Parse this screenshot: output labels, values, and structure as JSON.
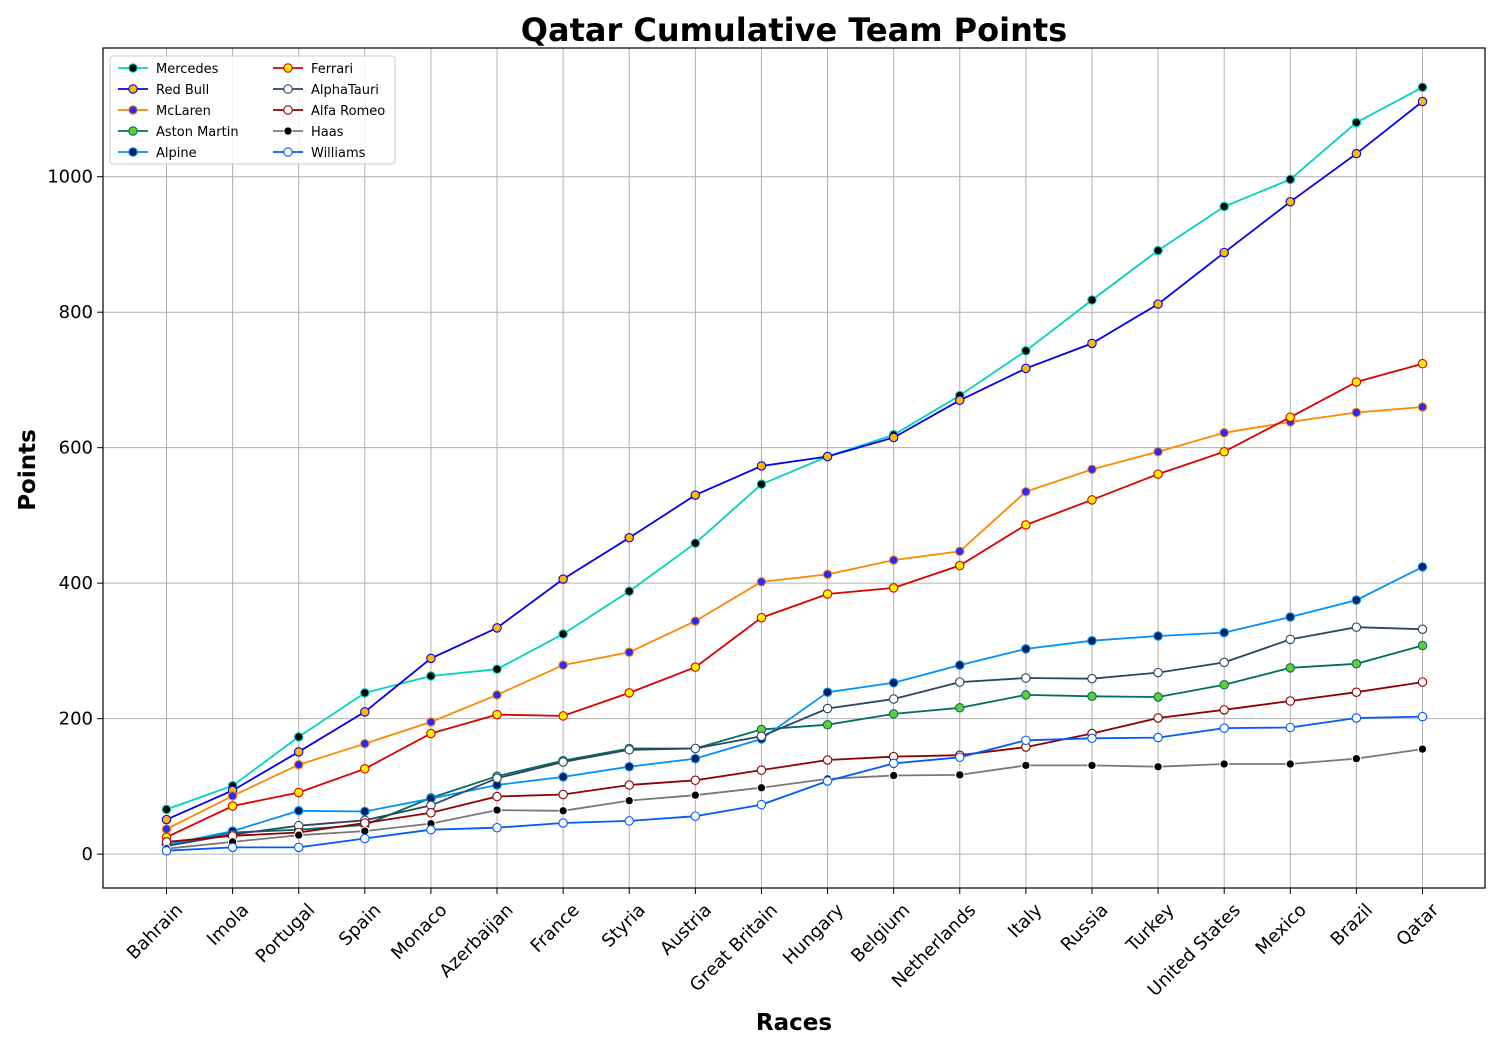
{
  "chart_data": {
    "type": "line",
    "title": "Qatar Cumulative Team Points",
    "xlabel": "Races",
    "ylabel": "Points",
    "categories": [
      "Bahrain",
      "Imola",
      "Portugal",
      "Spain",
      "Monaco",
      "Azerbaijan",
      "France",
      "Styria",
      "Austria",
      "Great Britain",
      "Hungary",
      "Belgium",
      "Netherlands",
      "Italy",
      "Russia",
      "Turkey",
      "United States",
      "Mexico",
      "Brazil",
      "Qatar"
    ],
    "ylim": [
      -50,
      1190
    ],
    "yticks": [
      0,
      200,
      400,
      600,
      800,
      1000
    ],
    "grid": true,
    "legend_position": "top-left",
    "series": [
      {
        "name": "Mercedes",
        "color": "#00d2be",
        "marker_fill": "#000000",
        "marker_edge": "#00d2be",
        "values": [
          66,
          101,
          173,
          238,
          263,
          273,
          325,
          388,
          459,
          546,
          587,
          619,
          677,
          743,
          818,
          891,
          956,
          996,
          1080,
          1132
        ]
      },
      {
        "name": "Red Bull",
        "color": "#0600ef",
        "marker_fill": "#ffb800",
        "marker_edge": "#0600ef",
        "values": [
          51,
          94,
          151,
          210,
          289,
          334,
          406,
          467,
          530,
          573,
          587,
          615,
          670,
          717,
          754,
          812,
          888,
          963,
          1034,
          1111
        ]
      },
      {
        "name": "McLaren",
        "color": "#ff8700",
        "marker_fill": "#2a2aff",
        "marker_edge": "#ff8700",
        "values": [
          37,
          86,
          132,
          163,
          195,
          235,
          279,
          298,
          344,
          402,
          413,
          434,
          447,
          535,
          568,
          594,
          622,
          638,
          652,
          660
        ]
      },
      {
        "name": "Aston Martin",
        "color": "#006f62",
        "marker_fill": "#66cc33",
        "marker_edge": "#006f62",
        "values": [
          14,
          32,
          36,
          43,
          83,
          115,
          138,
          156,
          156,
          184,
          191,
          207,
          216,
          235,
          233,
          232,
          250,
          275,
          281,
          308
        ]
      },
      {
        "name": "Alpine",
        "color": "#0090ff",
        "marker_fill": "#001f5c",
        "marker_edge": "#0090ff",
        "values": [
          14,
          34,
          64,
          63,
          82,
          102,
          114,
          129,
          141,
          170,
          239,
          253,
          279,
          303,
          315,
          322,
          327,
          350,
          375,
          424
        ]
      },
      {
        "name": "Ferrari",
        "color": "#dc0000",
        "marker_fill": "#fff200",
        "marker_edge": "#dc0000",
        "values": [
          25,
          71,
          91,
          126,
          178,
          206,
          204,
          238,
          276,
          349,
          384,
          393,
          426,
          486,
          523,
          561,
          594,
          645,
          697,
          724
        ]
      },
      {
        "name": "AlphaTauri",
        "color": "#2b4562",
        "marker_fill": "#ffffff",
        "marker_edge": "#2b4562",
        "values": [
          12,
          29,
          42,
          50,
          72,
          112,
          136,
          154,
          156,
          174,
          215,
          229,
          254,
          260,
          259,
          268,
          283,
          317,
          335,
          332
        ]
      },
      {
        "name": "Alfa Romeo",
        "color": "#900000",
        "marker_fill": "#ffffff",
        "marker_edge": "#900000",
        "values": [
          18,
          27,
          32,
          46,
          61,
          85,
          88,
          102,
          109,
          124,
          139,
          144,
          146,
          158,
          178,
          201,
          213,
          226,
          239,
          254
        ]
      },
      {
        "name": "Haas",
        "color": "#787878",
        "marker_fill": "#000000",
        "marker_edge": "#ffffff",
        "values": [
          8,
          18,
          28,
          34,
          45,
          65,
          64,
          79,
          87,
          98,
          111,
          116,
          117,
          131,
          131,
          129,
          133,
          133,
          141,
          155
        ]
      },
      {
        "name": "Williams",
        "color": "#005aff",
        "marker_fill": "#ffffff",
        "marker_edge": "#005aff",
        "values": [
          5,
          10,
          10,
          23,
          36,
          39,
          46,
          49,
          56,
          73,
          108,
          134,
          143,
          168,
          171,
          172,
          186,
          187,
          201,
          203
        ]
      }
    ]
  }
}
